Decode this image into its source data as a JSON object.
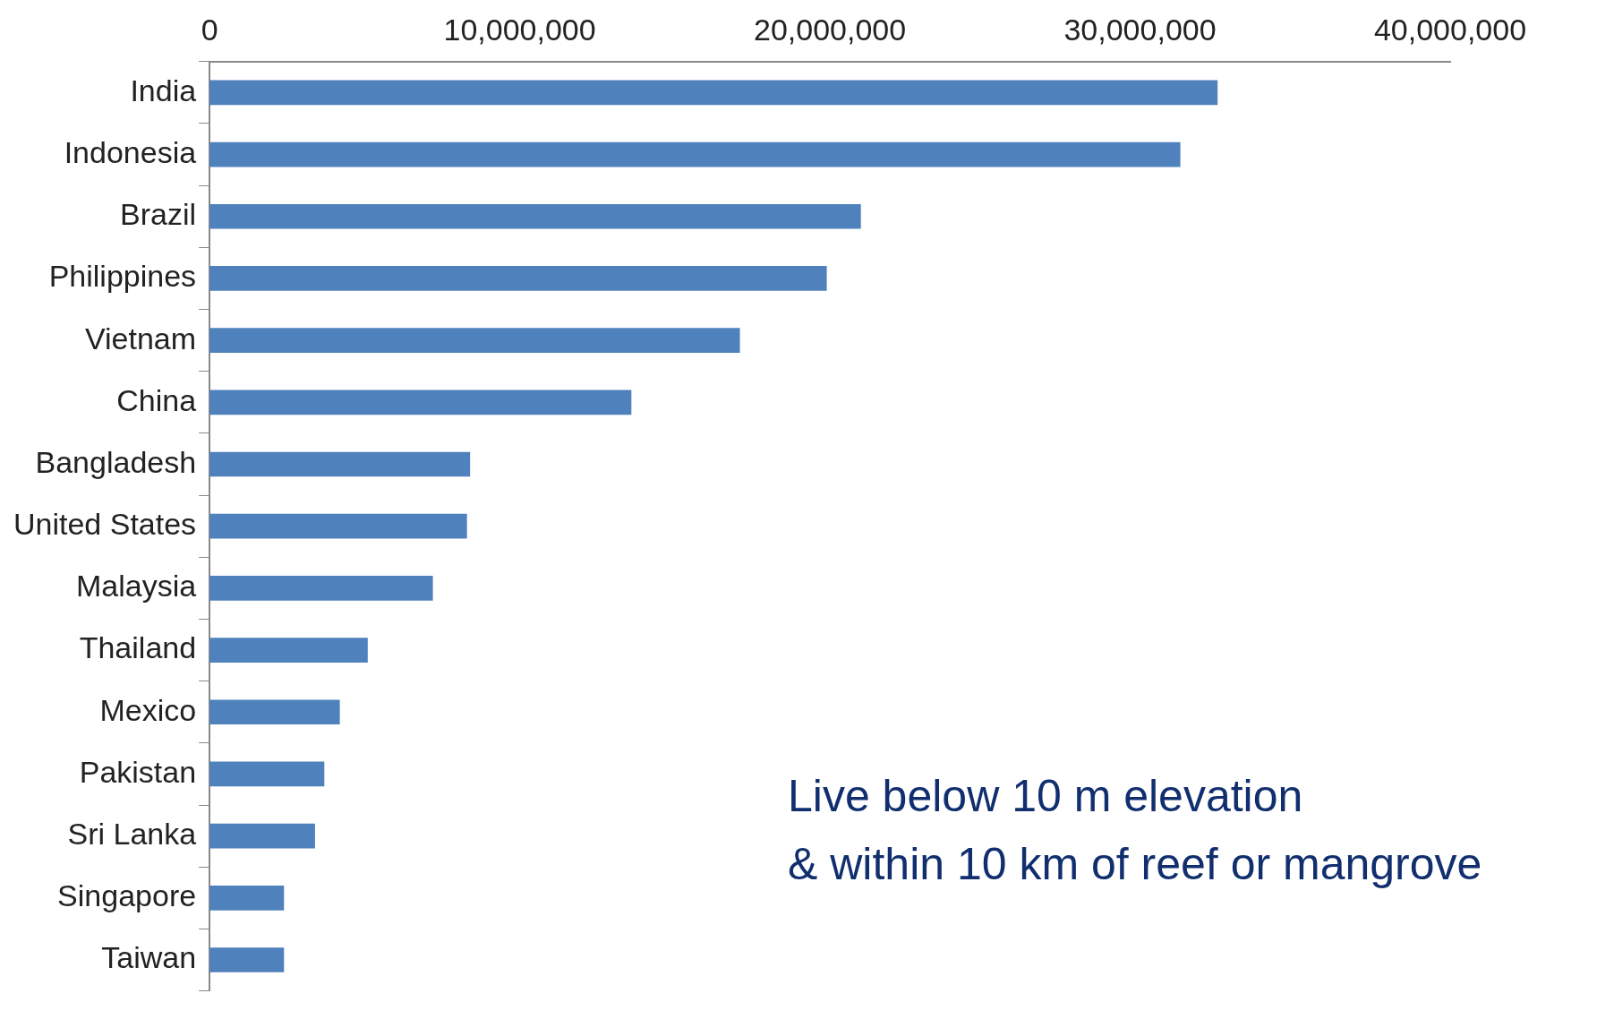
{
  "chart_data": {
    "type": "bar",
    "orientation": "horizontal",
    "categories": [
      "India",
      "Indonesia",
      "Brazil",
      "Philippines",
      "Vietnam",
      "China",
      "Bangladesh",
      "United States",
      "Malaysia",
      "Thailand",
      "Mexico",
      "Pakistan",
      "Sri Lanka",
      "Singapore",
      "Taiwan"
    ],
    "values": [
      32500000,
      31300000,
      21000000,
      19900000,
      17100000,
      13600000,
      8400000,
      8300000,
      7200000,
      5100000,
      4200000,
      3700000,
      3400000,
      2400000,
      2400000
    ],
    "color": "#4f81bd",
    "xlim": [
      0,
      40000000
    ],
    "xticks": [
      {
        "value": 0,
        "label": "0"
      },
      {
        "value": 10000000,
        "label": "10,000,000"
      },
      {
        "value": 20000000,
        "label": "20,000,000"
      },
      {
        "value": 30000000,
        "label": "30,000,000"
      },
      {
        "value": 40000000,
        "label": "40,000,000"
      }
    ],
    "grid": false,
    "annotations": [
      "Live below 10 m elevation",
      "& within 10 km of reef or mangrove"
    ]
  }
}
